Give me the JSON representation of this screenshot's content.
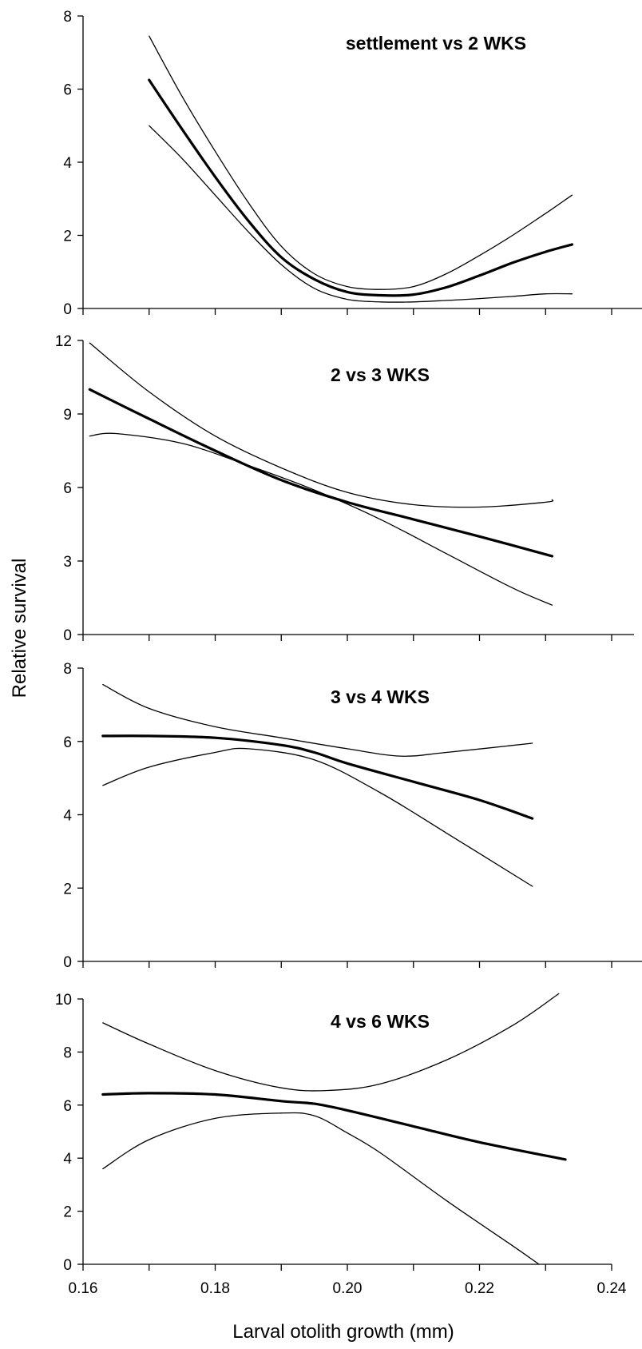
{
  "chart_data": {
    "type": "line",
    "ylabel": "Relative survival",
    "xlabel": "Larval otolith growth (mm)",
    "x_ticks": [
      "0.16",
      "0.18",
      "0.20",
      "0.22",
      "0.24"
    ],
    "xlim": [
      0.16,
      0.24
    ],
    "panels": [
      {
        "title": "settlement vs 2 WKS",
        "ylim": [
          0,
          8
        ],
        "y_ticks": [
          "0",
          "2",
          "4",
          "6",
          "8"
        ],
        "series": [
          {
            "role": "estimate",
            "points": [
              [
                0.17,
                6.25
              ],
              [
                0.175,
                4.9
              ],
              [
                0.18,
                3.6
              ],
              [
                0.185,
                2.4
              ],
              [
                0.19,
                1.4
              ],
              [
                0.195,
                0.8
              ],
              [
                0.2,
                0.45
              ],
              [
                0.205,
                0.36
              ],
              [
                0.21,
                0.38
              ],
              [
                0.215,
                0.58
              ],
              [
                0.22,
                0.9
              ],
              [
                0.225,
                1.25
              ],
              [
                0.23,
                1.55
              ],
              [
                0.234,
                1.75
              ]
            ]
          },
          {
            "role": "upper",
            "points": [
              [
                0.17,
                7.45
              ],
              [
                0.175,
                5.8
              ],
              [
                0.18,
                4.3
              ],
              [
                0.185,
                2.9
              ],
              [
                0.19,
                1.7
              ],
              [
                0.195,
                0.95
              ],
              [
                0.2,
                0.6
              ],
              [
                0.205,
                0.52
              ],
              [
                0.21,
                0.6
              ],
              [
                0.215,
                0.95
              ],
              [
                0.22,
                1.45
              ],
              [
                0.225,
                2.0
              ],
              [
                0.23,
                2.6
              ],
              [
                0.234,
                3.1
              ]
            ]
          },
          {
            "role": "lower",
            "points": [
              [
                0.17,
                5.0
              ],
              [
                0.175,
                4.1
              ],
              [
                0.18,
                3.1
              ],
              [
                0.185,
                2.1
              ],
              [
                0.19,
                1.2
              ],
              [
                0.195,
                0.55
              ],
              [
                0.2,
                0.25
              ],
              [
                0.205,
                0.18
              ],
              [
                0.21,
                0.18
              ],
              [
                0.215,
                0.22
              ],
              [
                0.22,
                0.27
              ],
              [
                0.225,
                0.33
              ],
              [
                0.23,
                0.4
              ],
              [
                0.234,
                0.4
              ]
            ]
          }
        ]
      },
      {
        "title": "2 vs 3 WKS",
        "ylim": [
          0,
          12
        ],
        "y_ticks": [
          "0",
          "3",
          "6",
          "9",
          "12"
        ],
        "series": [
          {
            "role": "estimate",
            "points": [
              [
                0.161,
                10.0
              ],
              [
                0.17,
                8.8
              ],
              [
                0.18,
                7.5
              ],
              [
                0.19,
                6.3
              ],
              [
                0.2,
                5.4
              ],
              [
                0.21,
                4.7
              ],
              [
                0.22,
                4.0
              ],
              [
                0.231,
                3.2
              ]
            ]
          },
          {
            "role": "upper",
            "points": [
              [
                0.161,
                11.9
              ],
              [
                0.17,
                9.9
              ],
              [
                0.18,
                8.1
              ],
              [
                0.19,
                6.8
              ],
              [
                0.2,
                5.8
              ],
              [
                0.21,
                5.3
              ],
              [
                0.22,
                5.2
              ],
              [
                0.23,
                5.4
              ],
              [
                0.231,
                5.5
              ]
            ]
          },
          {
            "role": "lower",
            "points": [
              [
                0.161,
                8.1
              ],
              [
                0.165,
                8.2
              ],
              [
                0.175,
                7.8
              ],
              [
                0.185,
                6.9
              ],
              [
                0.195,
                5.9
              ],
              [
                0.205,
                4.7
              ],
              [
                0.215,
                3.3
              ],
              [
                0.225,
                1.9
              ],
              [
                0.231,
                1.2
              ]
            ]
          }
        ]
      },
      {
        "title": "3 vs 4 WKS",
        "ylim": [
          0,
          8
        ],
        "y_ticks": [
          "0",
          "2",
          "4",
          "6",
          "8"
        ],
        "series": [
          {
            "role": "estimate",
            "points": [
              [
                0.163,
                6.15
              ],
              [
                0.17,
                6.15
              ],
              [
                0.18,
                6.1
              ],
              [
                0.19,
                5.9
              ],
              [
                0.195,
                5.7
              ],
              [
                0.2,
                5.4
              ],
              [
                0.21,
                4.9
              ],
              [
                0.22,
                4.4
              ],
              [
                0.228,
                3.9
              ]
            ]
          },
          {
            "role": "upper",
            "points": [
              [
                0.163,
                7.55
              ],
              [
                0.17,
                6.9
              ],
              [
                0.18,
                6.4
              ],
              [
                0.19,
                6.1
              ],
              [
                0.2,
                5.8
              ],
              [
                0.208,
                5.6
              ],
              [
                0.215,
                5.7
              ],
              [
                0.228,
                5.95
              ]
            ]
          },
          {
            "role": "lower",
            "points": [
              [
                0.163,
                4.8
              ],
              [
                0.17,
                5.3
              ],
              [
                0.18,
                5.7
              ],
              [
                0.185,
                5.8
              ],
              [
                0.195,
                5.5
              ],
              [
                0.205,
                4.6
              ],
              [
                0.215,
                3.5
              ],
              [
                0.228,
                2.05
              ]
            ]
          }
        ]
      },
      {
        "title": "4 vs 6 WKS",
        "ylim": [
          0,
          10
        ],
        "y_ticks": [
          "0",
          "2",
          "4",
          "6",
          "8",
          "10"
        ],
        "series": [
          {
            "role": "estimate",
            "points": [
              [
                0.163,
                6.4
              ],
              [
                0.17,
                6.45
              ],
              [
                0.18,
                6.4
              ],
              [
                0.19,
                6.15
              ],
              [
                0.195,
                6.05
              ],
              [
                0.2,
                5.8
              ],
              [
                0.21,
                5.2
              ],
              [
                0.22,
                4.6
              ],
              [
                0.233,
                3.95
              ]
            ]
          },
          {
            "role": "upper",
            "points": [
              [
                0.163,
                9.1
              ],
              [
                0.17,
                8.3
              ],
              [
                0.18,
                7.3
              ],
              [
                0.19,
                6.65
              ],
              [
                0.197,
                6.55
              ],
              [
                0.205,
                6.8
              ],
              [
                0.215,
                7.7
              ],
              [
                0.225,
                9.0
              ],
              [
                0.232,
                10.2
              ]
            ]
          },
          {
            "role": "lower",
            "points": [
              [
                0.163,
                3.6
              ],
              [
                0.17,
                4.7
              ],
              [
                0.18,
                5.5
              ],
              [
                0.19,
                5.7
              ],
              [
                0.195,
                5.6
              ],
              [
                0.2,
                4.95
              ],
              [
                0.205,
                4.2
              ],
              [
                0.215,
                2.4
              ],
              [
                0.225,
                0.7
              ],
              [
                0.229,
                0.0
              ]
            ]
          }
        ]
      }
    ]
  }
}
